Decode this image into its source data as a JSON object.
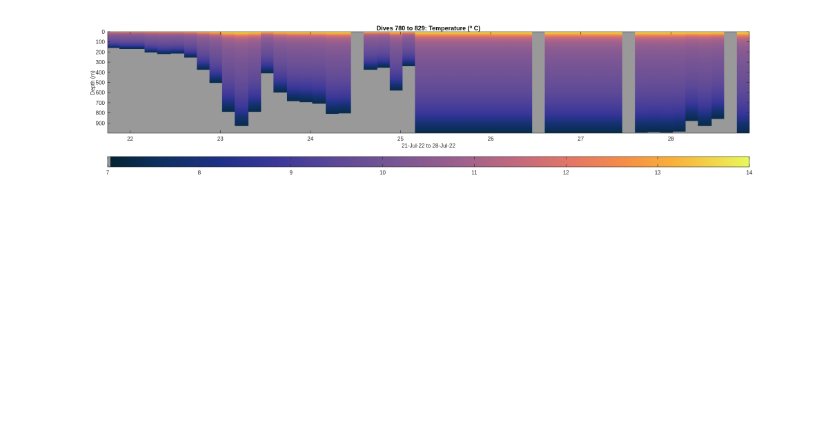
{
  "chart_data": {
    "type": "heatmap",
    "title_main": "Dives 780 to 829: Temperature (",
    "title_sup": "o",
    "title_end": " C)",
    "xlabel": "21-Jul-22 to 28-Jul-22",
    "ylabel": "Depth (m)",
    "x_range": [
      21.75,
      28.87
    ],
    "y_range": [
      0,
      1000
    ],
    "x_ticks": [
      22,
      23,
      24,
      25,
      26,
      27,
      28
    ],
    "x_tick_labels": [
      "22",
      "23",
      "24",
      "25",
      "26",
      "27",
      "28"
    ],
    "y_ticks": [
      0,
      100,
      200,
      300,
      400,
      500,
      600,
      700,
      800,
      900
    ],
    "y_tick_labels": [
      "0",
      "100",
      "200",
      "300",
      "400",
      "500",
      "600",
      "700",
      "800",
      "900"
    ],
    "y_reversed": true,
    "grid": false,
    "colormap": "thermal",
    "nodata_color": "#999999",
    "colorbar": {
      "orientation": "horizontal",
      "range": [
        7,
        14
      ],
      "ticks": [
        7,
        8,
        9,
        10,
        11,
        12,
        13,
        14
      ],
      "tick_labels": [
        "7",
        "8",
        "9",
        "10",
        "11",
        "12",
        "13",
        "14"
      ]
    },
    "temperature_profile": {
      "depths": [
        0,
        10,
        20,
        40,
        60,
        100,
        150,
        200,
        300,
        400,
        500,
        600,
        700,
        800,
        850,
        900,
        950,
        1000
      ],
      "temps": [
        13.9,
        13.6,
        13.1,
        12.2,
        11.5,
        10.9,
        10.6,
        10.4,
        10.15,
        9.95,
        9.75,
        9.5,
        9.2,
        8.8,
        8.4,
        7.9,
        7.5,
        7.3
      ]
    },
    "dives": [
      {
        "start": 21.75,
        "end": 21.88,
        "max_depth": 160
      },
      {
        "start": 21.88,
        "end": 22.16,
        "max_depth": 170
      },
      {
        "start": 22.16,
        "end": 22.3,
        "max_depth": 205
      },
      {
        "start": 22.3,
        "end": 22.45,
        "max_depth": 220
      },
      {
        "start": 22.45,
        "end": 22.6,
        "max_depth": 215
      },
      {
        "start": 22.6,
        "end": 22.74,
        "max_depth": 255
      },
      {
        "start": 22.74,
        "end": 22.88,
        "max_depth": 375
      },
      {
        "start": 22.88,
        "end": 23.02,
        "max_depth": 505
      },
      {
        "start": 23.02,
        "end": 23.16,
        "max_depth": 790
      },
      {
        "start": 23.16,
        "end": 23.31,
        "max_depth": 930
      },
      {
        "start": 23.31,
        "end": 23.45,
        "max_depth": 790
      },
      {
        "start": 23.45,
        "end": 23.59,
        "max_depth": 410
      },
      {
        "start": 23.59,
        "end": 23.74,
        "max_depth": 600
      },
      {
        "start": 23.74,
        "end": 23.88,
        "max_depth": 685
      },
      {
        "start": 23.88,
        "end": 24.02,
        "max_depth": 695
      },
      {
        "start": 24.02,
        "end": 24.17,
        "max_depth": 710
      },
      {
        "start": 24.17,
        "end": 24.31,
        "max_depth": 810
      },
      {
        "start": 24.31,
        "end": 24.45,
        "max_depth": 805
      },
      {
        "start": 24.59,
        "end": 24.74,
        "max_depth": 375
      },
      {
        "start": 24.74,
        "end": 24.88,
        "max_depth": 355
      },
      {
        "start": 24.88,
        "end": 25.02,
        "max_depth": 580
      },
      {
        "start": 25.02,
        "end": 25.16,
        "max_depth": 340
      },
      {
        "start": 25.16,
        "end": 26.46,
        "max_depth": 1000
      },
      {
        "start": 26.6,
        "end": 27.46,
        "max_depth": 1000
      },
      {
        "start": 27.6,
        "end": 27.74,
        "max_depth": 995
      },
      {
        "start": 27.74,
        "end": 27.88,
        "max_depth": 990
      },
      {
        "start": 27.88,
        "end": 28.02,
        "max_depth": 995
      },
      {
        "start": 28.02,
        "end": 28.16,
        "max_depth": 985
      },
      {
        "start": 28.16,
        "end": 28.3,
        "max_depth": 880
      },
      {
        "start": 28.3,
        "end": 28.45,
        "max_depth": 930
      },
      {
        "start": 28.45,
        "end": 28.59,
        "max_depth": 860
      },
      {
        "start": 28.73,
        "end": 28.87,
        "max_depth": 1000
      }
    ],
    "gaps": [
      {
        "start": 24.45,
        "end": 24.59
      },
      {
        "start": 26.46,
        "end": 26.6
      },
      {
        "start": 27.46,
        "end": 27.6
      },
      {
        "start": 28.59,
        "end": 28.73
      }
    ]
  }
}
